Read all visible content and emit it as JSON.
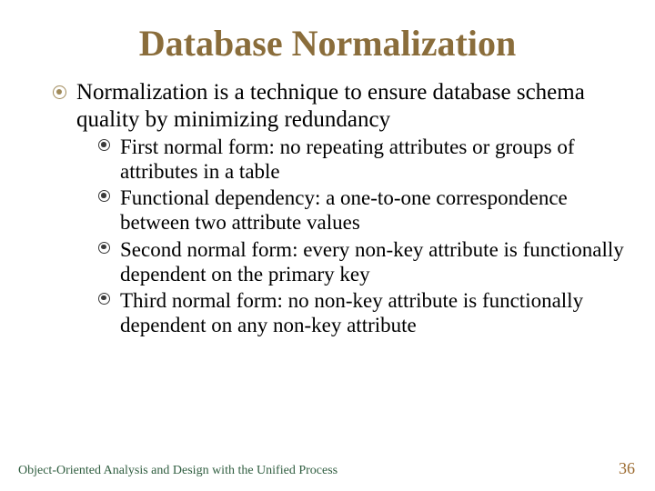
{
  "colors": {
    "title": "#8a6d3b",
    "bullet1": "#a08a5a",
    "bullet2": "#3a3a3a",
    "body": "#000000",
    "footer_left": "#2f5d3f",
    "footer_right": "#9c6b30",
    "background": "#ffffff"
  },
  "fonts": {
    "title_size": 40,
    "lvl1_size": 25,
    "lvl2_size": 23,
    "footer_size": 14,
    "page_size": 18
  },
  "title": "Database Normalization",
  "body": {
    "main": "Normalization is a technique to ensure database schema quality by minimizing redundancy",
    "subs": [
      "First normal form: no repeating attributes or groups of attributes in a table",
      "Functional dependency: a one-to-one correspondence between two attribute values",
      "Second normal form: every non-key attribute is functionally dependent on the primary key",
      "Third normal form: no non-key attribute is functionally dependent on any non-key attribute"
    ]
  },
  "footer": {
    "left": "Object-Oriented Analysis and Design with the Unified Process",
    "page": "36"
  }
}
